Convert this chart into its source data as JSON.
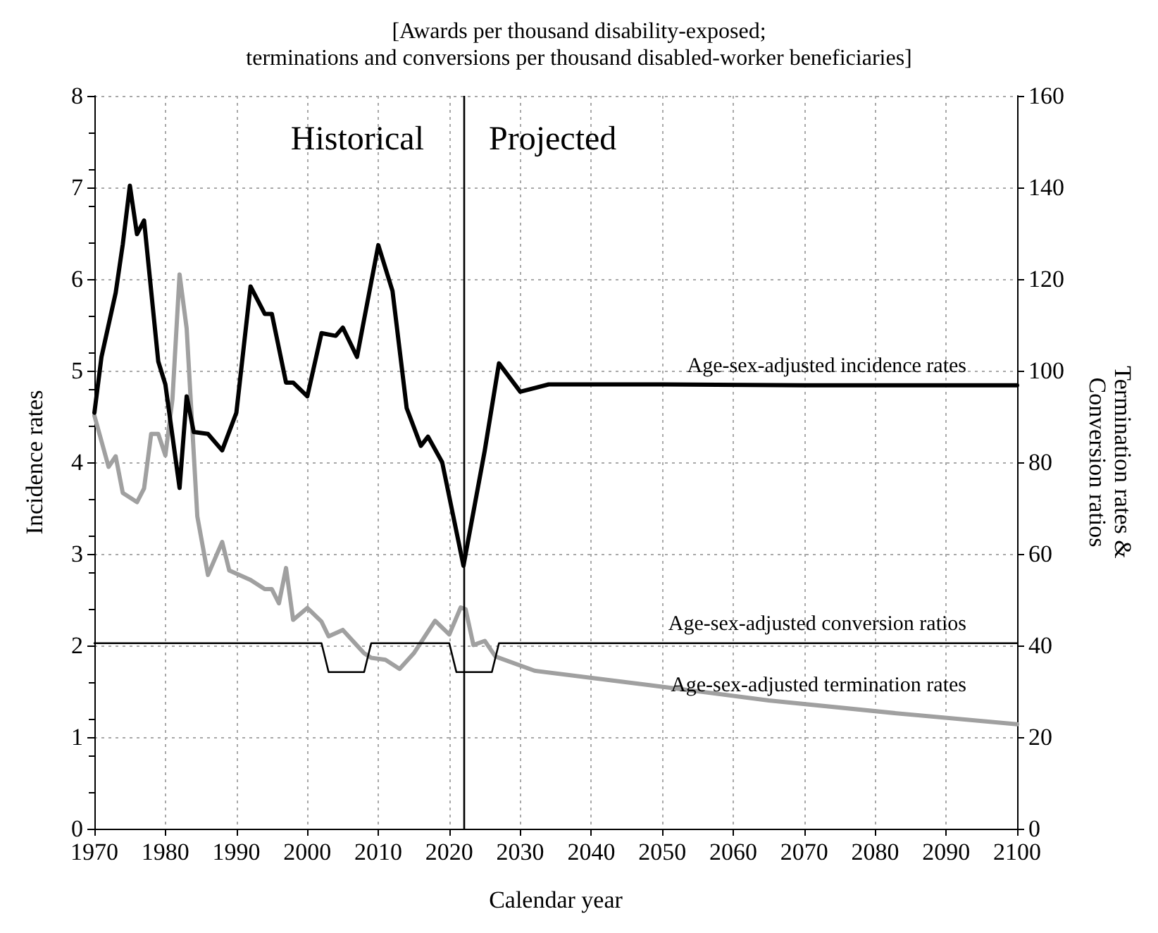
{
  "chart_data": {
    "type": "line",
    "subtitle": "[Awards per thousand disability-exposed;\nterminations and conversions per thousand disabled-worker beneficiaries]",
    "xlabel": "Calendar year",
    "ylabel": "Incidence rates",
    "y2label": "Termination rates &\nConversion ratios",
    "xlim": [
      1970,
      2100
    ],
    "xticks": [
      1970,
      1980,
      1990,
      2000,
      2010,
      2020,
      2030,
      2040,
      2050,
      2060,
      2070,
      2080,
      2090,
      2100
    ],
    "ylim": [
      0,
      8
    ],
    "yticks": [
      0,
      1,
      2,
      3,
      4,
      5,
      6,
      7,
      8
    ],
    "y2lim": [
      0,
      160
    ],
    "y2ticks": [
      0,
      20,
      40,
      60,
      80,
      100,
      120,
      140,
      160
    ],
    "grid": true,
    "legend": false,
    "marker": "none",
    "line_style": "solid",
    "ref_lines": [
      {
        "axis": "x",
        "value": 2022,
        "color": "#000000"
      }
    ],
    "annotations": [
      "Historical",
      "Projected"
    ],
    "series": [
      {
        "name": "Age-sex-adjusted incidence rates",
        "color": "#000000",
        "x": [
          1970,
          1971,
          1973,
          1974,
          1975,
          1976,
          1977,
          1979,
          1980,
          1982,
          1983,
          1984,
          1986,
          1988,
          1990,
          1992,
          1994,
          1995,
          1997,
          1998,
          2000,
          2002,
          2004,
          2005,
          2007,
          2008,
          2010,
          2012,
          2014,
          2016,
          2017,
          2019,
          2022,
          2025,
          2027,
          2030,
          2034,
          2050,
          2070,
          2100
        ],
        "values": [
          4.54,
          5.15,
          5.85,
          6.38,
          7.02,
          6.49,
          6.64,
          5.1,
          4.85,
          3.72,
          4.72,
          4.33,
          4.31,
          4.13,
          4.54,
          5.92,
          5.62,
          5.62,
          4.87,
          4.87,
          4.72,
          5.41,
          5.38,
          5.47,
          5.15,
          5.56,
          6.37,
          5.87,
          4.59,
          4.18,
          4.28,
          4.0,
          2.87,
          4.13,
          5.08,
          4.77,
          4.85,
          4.85,
          4.84,
          4.84
        ]
      },
      {
        "name": "Age-sex-adjusted conversion ratios",
        "color": "#000000",
        "axis": "y2",
        "x": [
          1970,
          2002,
          2003,
          2008,
          2009,
          2020,
          2021,
          2026,
          2027,
          2100
        ],
        "values": [
          40.5,
          40.5,
          34.2,
          34.2,
          40.5,
          40.5,
          34.2,
          34.2,
          40.5,
          40.5
        ]
      },
      {
        "name": "Age-sex-adjusted termination rates",
        "color": "#a0a0a0",
        "axis": "y2",
        "x": [
          1970,
          1972,
          1973,
          1974,
          1976,
          1977,
          1978,
          1979,
          1980,
          1981,
          1982,
          1983,
          1984.5,
          1986,
          1988,
          1989,
          1992,
          1994,
          1995,
          1996,
          1997,
          1998,
          2000,
          2002,
          2003,
          2005,
          2008,
          2009,
          2011,
          2013,
          2015,
          2018,
          2020,
          2021.6,
          2022.3,
          2023.4,
          2025,
          2026.5,
          2032,
          2048,
          2065,
          2083,
          2100
        ],
        "values": [
          90.2,
          79.0,
          81.3,
          73.3,
          71.3,
          74.3,
          86.2,
          86.2,
          81.5,
          93.8,
          121.0,
          109.2,
          68.2,
          55.4,
          62.6,
          56.4,
          54.3,
          52.3,
          52.3,
          49.2,
          56.9,
          45.6,
          48.2,
          45.2,
          42.0,
          43.4,
          38.3,
          37.3,
          36.9,
          34.9,
          38.3,
          45.4,
          42.4,
          48.3,
          47.9,
          40.1,
          41.0,
          37.6,
          34.5,
          31.4,
          28.0,
          25.2,
          22.8
        ]
      }
    ]
  }
}
